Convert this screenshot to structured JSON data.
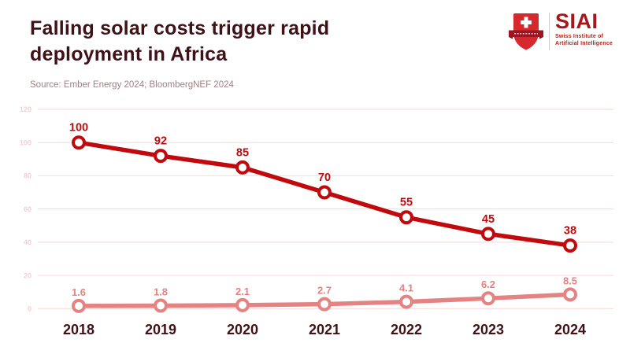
{
  "header": {
    "title_lines": [
      "Falling solar costs trigger rapid",
      "deployment in Africa"
    ],
    "source": "Source: Ember Energy 2024; BloombergNEF 2024",
    "title_color": "#3f1218",
    "source_color": "#9e8181"
  },
  "logo": {
    "acronym": "SIAI",
    "org_lines": [
      "Swiss Institute of",
      "Artificial Intelligence"
    ],
    "shield_color": "#d7282e",
    "banner_color": "#9e1420",
    "text_color": "#a5161d"
  },
  "chart_data": {
    "type": "line",
    "categories": [
      "2018",
      "2019",
      "2020",
      "2021",
      "2022",
      "2023",
      "2024"
    ],
    "series": [
      {
        "values": [
          100,
          92,
          85,
          70,
          55,
          45,
          38
        ],
        "labels": [
          "100",
          "92",
          "85",
          "70",
          "55",
          "45",
          "38"
        ],
        "color": "#c00a0e"
      },
      {
        "values": [
          1.6,
          1.8,
          2.1,
          2.7,
          4.1,
          6.2,
          8.5
        ],
        "labels": [
          "1.6",
          "1.8",
          "2.1",
          "2.7",
          "4.1",
          "6.2",
          "8.5"
        ],
        "color": "#e58282"
      }
    ],
    "ylim": [
      0,
      120
    ],
    "yticks": [
      0,
      20,
      40,
      60,
      80,
      100,
      120
    ],
    "grid": true,
    "legend": "none",
    "colors": {
      "gridline": "#f9dede",
      "tick_label": "#f5cfcf",
      "axis_label": "#3f1218",
      "marker_fill": "#ffffff"
    }
  }
}
